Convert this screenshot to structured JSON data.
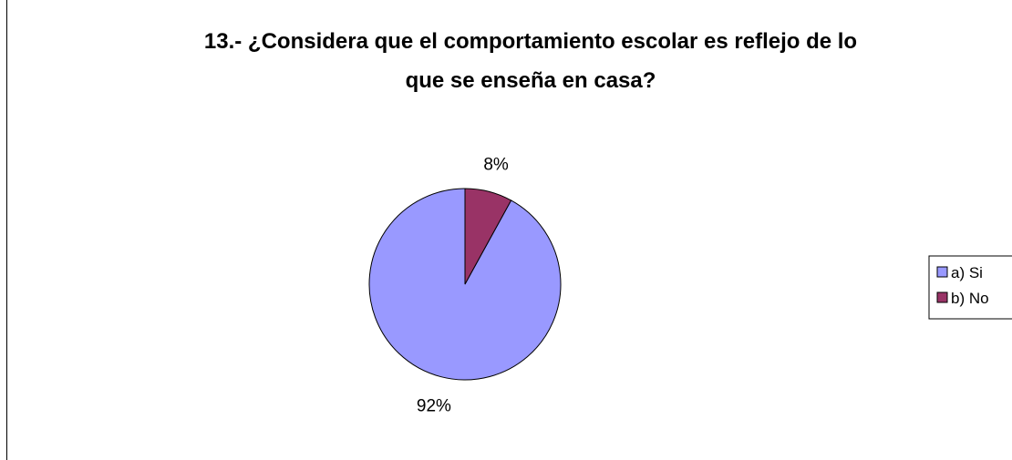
{
  "chart_data": {
    "type": "pie",
    "title_lines": [
      "13.- ¿Considera que el comportamiento escolar es reflejo de lo",
      "que se enseña en casa?"
    ],
    "categories": [
      "a) Si",
      "b) No"
    ],
    "values": [
      92,
      8
    ],
    "data_labels": [
      "92%",
      "8%"
    ],
    "colors": [
      "#9999ff",
      "#993366"
    ],
    "legend_position": "right"
  }
}
